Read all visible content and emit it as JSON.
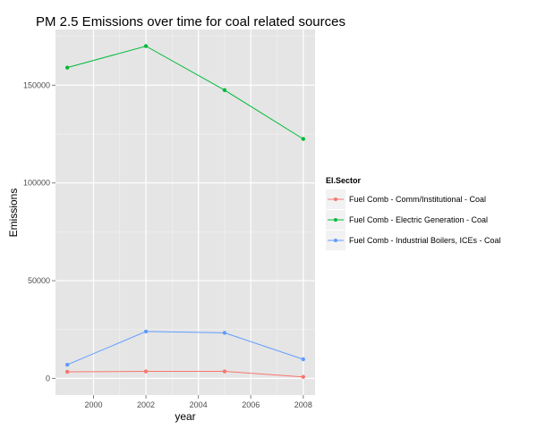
{
  "chart_data": {
    "type": "line",
    "title": "PM 2.5 Emissions over time for coal related sources",
    "xlabel": "year",
    "ylabel": "Emissions",
    "x": [
      1999,
      2002,
      2005,
      2008
    ],
    "xlim": [
      1998.55,
      2008.45
    ],
    "ylim": [
      -8500,
      178500
    ],
    "xticks": [
      2000,
      2002,
      2004,
      2006,
      2008
    ],
    "yticks": [
      0,
      50000,
      100000,
      150000
    ],
    "grid": true,
    "legend": {
      "title": "EI.Sector",
      "position": "right"
    },
    "series": [
      {
        "name": "Fuel Comb - Comm/Institutional - Coal",
        "color": "#F8766D",
        "values": [
          3400,
          3600,
          3600,
          800
        ]
      },
      {
        "name": "Fuel Comb - Electric Generation - Coal",
        "color": "#00BA38",
        "values": [
          159000,
          170000,
          147500,
          122500
        ]
      },
      {
        "name": "Fuel Comb - Industrial Boilers, ICEs - Coal",
        "color": "#619CFF",
        "values": [
          7000,
          24000,
          23300,
          9800
        ]
      }
    ]
  }
}
